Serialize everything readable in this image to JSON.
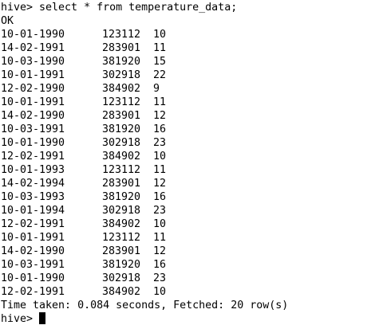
{
  "terminal": {
    "command_prompt": "hive>",
    "command": "select * from temperature_data;",
    "status": "OK",
    "rows": [
      [
        "10-01-1990",
        "123112",
        "10"
      ],
      [
        "14-02-1991",
        "283901",
        "11"
      ],
      [
        "10-03-1990",
        "381920",
        "15"
      ],
      [
        "10-01-1991",
        "302918",
        "22"
      ],
      [
        "12-02-1990",
        "384902",
        "9"
      ],
      [
        "10-01-1991",
        "123112",
        "11"
      ],
      [
        "14-02-1990",
        "283901",
        "12"
      ],
      [
        "10-03-1991",
        "381920",
        "16"
      ],
      [
        "10-01-1990",
        "302918",
        "23"
      ],
      [
        "12-02-1991",
        "384902",
        "10"
      ],
      [
        "10-01-1993",
        "123112",
        "11"
      ],
      [
        "14-02-1994",
        "283901",
        "12"
      ],
      [
        "10-03-1993",
        "381920",
        "16"
      ],
      [
        "10-01-1994",
        "302918",
        "23"
      ],
      [
        "12-02-1991",
        "384902",
        "10"
      ],
      [
        "10-01-1991",
        "123112",
        "11"
      ],
      [
        "14-02-1990",
        "283901",
        "12"
      ],
      [
        "10-03-1991",
        "381920",
        "16"
      ],
      [
        "10-01-1990",
        "302918",
        "23"
      ],
      [
        "12-02-1991",
        "384902",
        "10"
      ]
    ],
    "summary": "Time taken: 0.084 seconds, Fetched: 20 row(s)",
    "prompt": "hive>"
  }
}
